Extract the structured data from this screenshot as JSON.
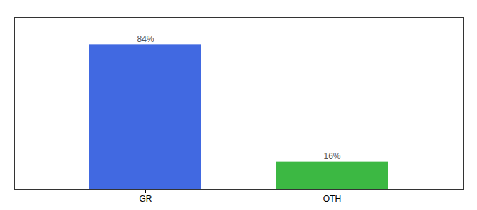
{
  "chart_data": {
    "type": "bar",
    "categories": [
      "GR",
      "OTH"
    ],
    "values": [
      84,
      16
    ],
    "colors": [
      "#4169E1",
      "#3CB843"
    ],
    "value_labels": [
      "84%",
      "16%"
    ],
    "data_labels": true,
    "ylim": [
      0,
      100
    ],
    "tick_labels": "x",
    "grid": false
  }
}
